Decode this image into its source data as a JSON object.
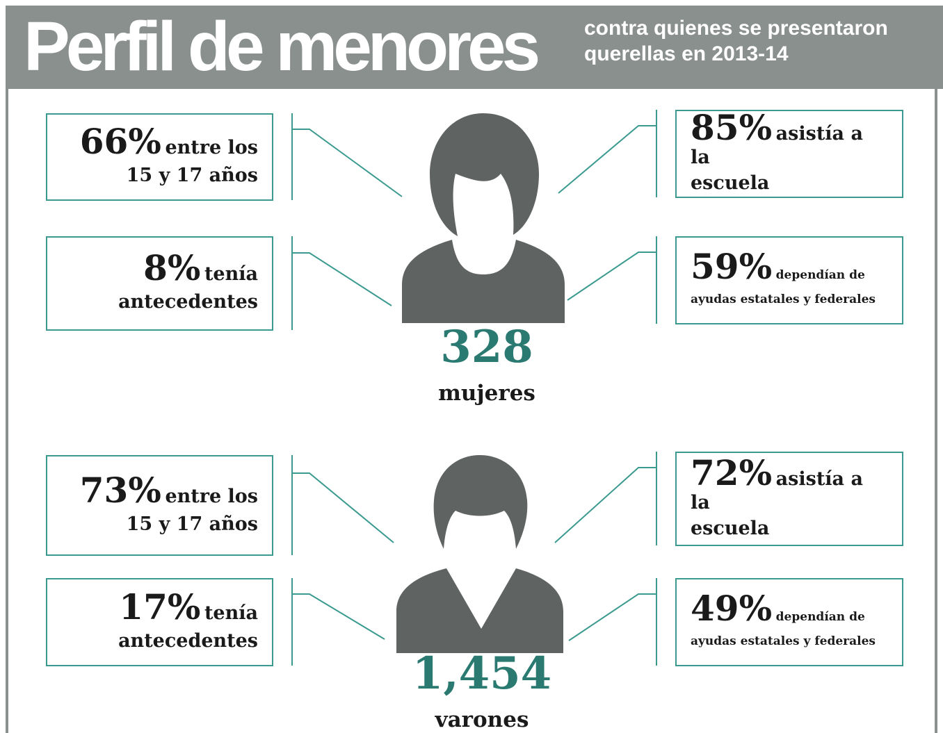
{
  "header": {
    "title": "Perfil de menores",
    "subtitle": "contra quienes se presentaron querellas en 2013-14"
  },
  "groups": [
    {
      "total": "328",
      "label": "mujeres",
      "facts": [
        {
          "percent": "66%",
          "text": [
            "entre los",
            "15 y 17 años"
          ]
        },
        {
          "percent": "85%",
          "text": [
            "asistía a la",
            "escuela"
          ]
        },
        {
          "percent": "8%",
          "text": [
            "tenía",
            "antecedentes"
          ]
        },
        {
          "percent": "59%",
          "text": [
            "dependían de",
            "ayudas estatales y federales"
          ]
        }
      ]
    },
    {
      "total": "1,454",
      "label": "varones",
      "facts": [
        {
          "percent": "73%",
          "text": [
            "entre los",
            "15 y 17 años"
          ]
        },
        {
          "percent": "72%",
          "text": [
            "asistía a la",
            "escuela"
          ]
        },
        {
          "percent": "17%",
          "text": [
            "tenía",
            "antecedentes"
          ]
        },
        {
          "percent": "49%",
          "text": [
            "dependían de",
            "ayudas estatales y federales"
          ]
        }
      ]
    }
  ]
}
